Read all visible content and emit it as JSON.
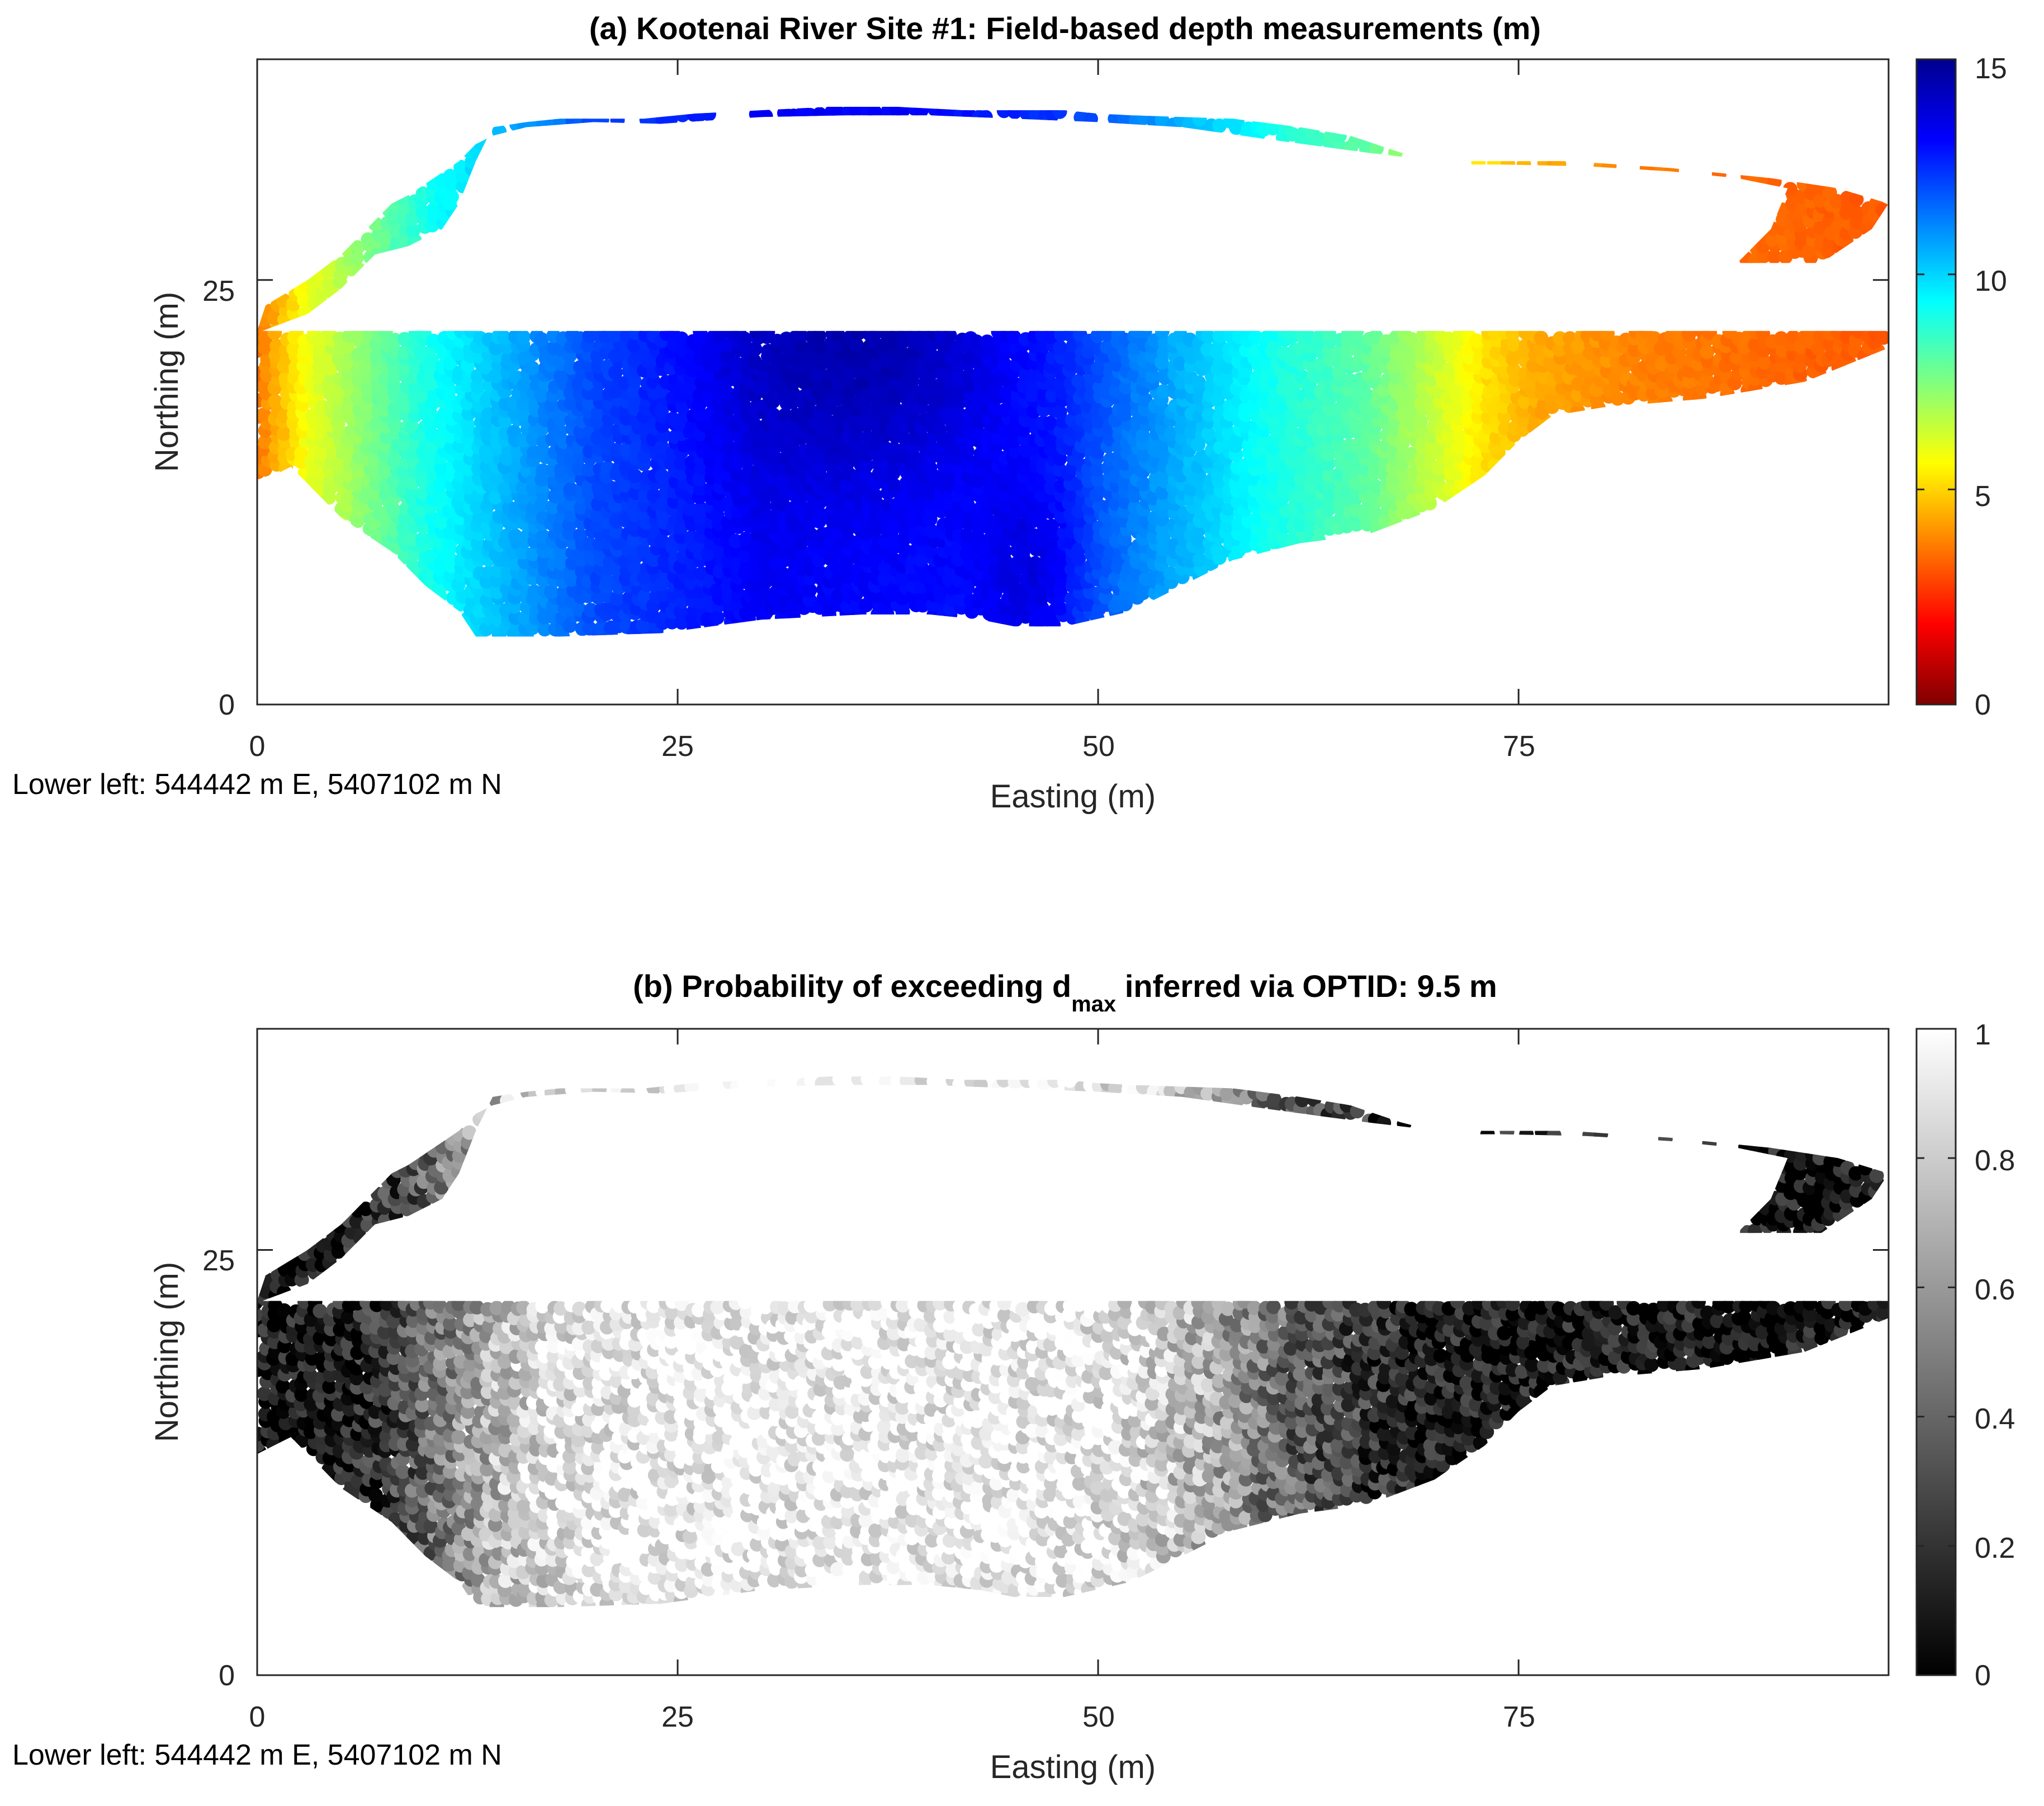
{
  "chart_data": [
    {
      "type": "scatter",
      "title": "(a) Kootenai River Site #1: Field-based depth measurements (m)",
      "xlabel": "Easting (m)",
      "ylabel": "Northing (m)",
      "xlim": [
        0,
        97
      ],
      "ylim": [
        0,
        38
      ],
      "x_ticks": [
        "0",
        "25",
        "50",
        "75"
      ],
      "y_ticks": [
        "0",
        "25"
      ],
      "note": "Lower left: 544442 m E, 5407102 m N",
      "colorbar": {
        "colormap": "jet-reversed",
        "range": [
          0,
          15
        ],
        "ticks": [
          "0",
          "5",
          "10",
          "15"
        ]
      },
      "field": {
        "variable": "depth (m)",
        "profile_easting": [
          0,
          3,
          10,
          20,
          30,
          40,
          48,
          55,
          60,
          66,
          70,
          73,
          76,
          82,
          90,
          97
        ],
        "profile_depth": [
          3.5,
          5.8,
          9.0,
          12.0,
          13.2,
          13.0,
          12.4,
          10.5,
          9.2,
          8.0,
          6.5,
          5.2,
          4.4,
          3.8,
          3.4,
          3.2
        ],
        "deepest_zone_depth": 14.5
      },
      "outline": {
        "easting": [
          0.3,
          3,
          5,
          7,
          9,
          11,
          12,
          13,
          14,
          16,
          18,
          20,
          23,
          26,
          30,
          34,
          38,
          42,
          44,
          46,
          48,
          50,
          52,
          55,
          58,
          62,
          65,
          68,
          70,
          72,
          74,
          78,
          84,
          90,
          94,
          97,
          96,
          93,
          90,
          88,
          90,
          91,
          88,
          84,
          79,
          74,
          72,
          66,
          60,
          55,
          50,
          45,
          40,
          35,
          30,
          24,
          20,
          16,
          14,
          13,
          12,
          10.5,
          9,
          8,
          7,
          6,
          5,
          3,
          0.5,
          0
        ],
        "northing": [
          22,
          23,
          24.5,
          26.5,
          27,
          28,
          29.5,
          32,
          34,
          34.3,
          34.5,
          34.5,
          34.5,
          34.8,
          35,
          35.2,
          35.2,
          35,
          35,
          35,
          35,
          34.8,
          34.7,
          34.6,
          34.5,
          34,
          33.5,
          32.5,
          32,
          32,
          32,
          32,
          31.6,
          31,
          30.4,
          29.5,
          28,
          26,
          26,
          26,
          28,
          30.4,
          31,
          31.4,
          31.7,
          31.8,
          31.8,
          32.5,
          33.3,
          34,
          34.3,
          34.5,
          34.7,
          34.7,
          34.6,
          34.2,
          34.3,
          34,
          33.5,
          33,
          32,
          31,
          30,
          29.5,
          28.5,
          27.5,
          26.5,
          25,
          23.5,
          22
        ]
      }
    },
    {
      "type": "scatter",
      "title": "(b) Probability of exceeding d",
      "title_subscript": "max",
      "title_suffix": " inferred via OPTID: 9.5 m",
      "xlabel": "Easting (m)",
      "ylabel": "Northing (m)",
      "xlim": [
        0,
        97
      ],
      "ylim": [
        0,
        38
      ],
      "x_ticks": [
        "0",
        "25",
        "50",
        "75"
      ],
      "y_ticks": [
        "0",
        "25"
      ],
      "note": "Lower left: 544442 m E, 5407102 m N",
      "colorbar": {
        "colormap": "gray",
        "range": [
          0,
          1
        ],
        "ticks": [
          "0",
          "0.2",
          "0.4",
          "0.6",
          "0.8",
          "1"
        ]
      },
      "field": {
        "variable": "probability",
        "threshold_depth": 9.5
      }
    }
  ]
}
